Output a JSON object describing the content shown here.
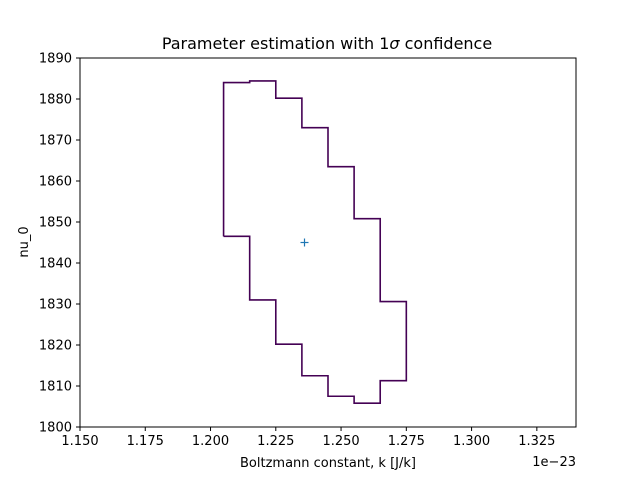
{
  "chart_data": {
    "type": "line",
    "title_prefix": "Parameter estimation with 1",
    "title_symbol": "σ",
    "title_suffix": " confidence",
    "xlabel": "Boltzmann constant, k [J/k]",
    "ylabel": "nu_0",
    "x_offset_label": "1e−23",
    "xlim": [
      1.15,
      1.34
    ],
    "ylim": [
      1800,
      1890
    ],
    "x_ticks": [
      1.15,
      1.175,
      1.2,
      1.225,
      1.25,
      1.275,
      1.3,
      1.325
    ],
    "x_tick_labels": [
      "1.150",
      "1.175",
      "1.200",
      "1.225",
      "1.250",
      "1.275",
      "1.300",
      "1.325"
    ],
    "y_ticks": [
      1800,
      1810,
      1820,
      1830,
      1840,
      1850,
      1860,
      1870,
      1880,
      1890
    ],
    "y_tick_labels": [
      "1800",
      "1810",
      "1820",
      "1830",
      "1840",
      "1850",
      "1860",
      "1870",
      "1880",
      "1890"
    ],
    "grid": false,
    "series": [
      {
        "kind": "contour",
        "color": "#440154",
        "x": [
          1.205,
          1.215,
          1.215,
          1.225,
          1.225,
          1.235,
          1.235,
          1.245,
          1.245,
          1.255,
          1.255,
          1.265,
          1.265,
          1.275,
          1.275,
          1.265,
          1.265,
          1.255,
          1.255,
          1.245,
          1.245,
          1.235,
          1.235,
          1.225,
          1.225,
          1.215,
          1.215,
          1.205,
          1.205
        ],
        "y": [
          1846.5,
          1846.5,
          1831.0,
          1831.0,
          1820.2,
          1820.2,
          1812.5,
          1812.5,
          1807.5,
          1807.5,
          1805.8,
          1805.8,
          1811.3,
          1811.3,
          1830.6,
          1830.6,
          1850.8,
          1850.8,
          1863.5,
          1863.5,
          1873.0,
          1873.0,
          1880.2,
          1880.2,
          1884.4,
          1884.4,
          1884.0,
          1884.0,
          1846.5
        ]
      },
      {
        "kind": "marker",
        "marker": "+",
        "color": "#1f77b4",
        "x": [
          1.236
        ],
        "y": [
          1845
        ]
      }
    ]
  }
}
